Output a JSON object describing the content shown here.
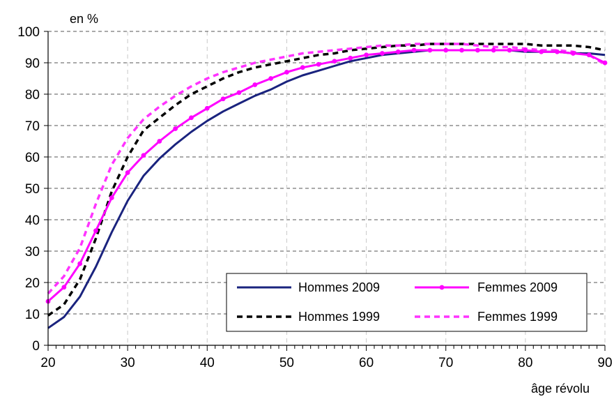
{
  "chart_data": {
    "type": "line",
    "ylabel": "en %",
    "xlabel": "âge révolu",
    "xlim": [
      20,
      90
    ],
    "ylim": [
      0,
      100
    ],
    "xticks": [
      20,
      30,
      40,
      50,
      60,
      70,
      80,
      90
    ],
    "yticks": [
      0,
      10,
      20,
      30,
      40,
      50,
      60,
      70,
      80,
      90,
      100
    ],
    "grid": {
      "horizontal": "dashed",
      "vertical": "dashed"
    },
    "legend_position": "bottom-right",
    "x": [
      20,
      22,
      24,
      26,
      28,
      30,
      32,
      34,
      36,
      38,
      40,
      42,
      44,
      46,
      48,
      50,
      52,
      54,
      56,
      58,
      60,
      62,
      64,
      66,
      68,
      70,
      72,
      74,
      76,
      78,
      80,
      82,
      84,
      86,
      88,
      90
    ],
    "series": [
      {
        "name": "Hommes 2009",
        "style": "solid",
        "color": "#1a237e",
        "markers": false,
        "values": [
          5.5,
          9,
          15.5,
          25,
          36,
          46,
          54,
          59.5,
          64,
          68,
          71.5,
          74.5,
          77,
          79.5,
          81.5,
          84,
          86,
          87.5,
          89,
          90.5,
          91.5,
          92.5,
          93,
          93.5,
          94,
          94,
          94,
          94,
          94,
          94,
          93.5,
          93.5,
          93.5,
          93,
          93,
          92.5
        ]
      },
      {
        "name": "Femmes 2009",
        "style": "solid",
        "color": "#ff00ff",
        "markers": true,
        "values": [
          14,
          18.5,
          26,
          36.5,
          47,
          55,
          60.5,
          65,
          69,
          72.5,
          75.5,
          78.5,
          80.5,
          83,
          85,
          87,
          88.5,
          89.5,
          90.5,
          91.5,
          92.5,
          93,
          93.5,
          94,
          94,
          94,
          94,
          94,
          94,
          94,
          94,
          93.5,
          93.5,
          93,
          92.5,
          90
        ]
      },
      {
        "name": "Hommes 1999",
        "style": "dashed",
        "color": "#000000",
        "markers": false,
        "values": [
          9.5,
          13,
          21,
          34,
          49,
          60,
          68.5,
          72.5,
          76.5,
          80,
          82.5,
          85,
          87,
          88.5,
          89.5,
          90.5,
          91.5,
          92.5,
          93,
          94,
          94.5,
          95,
          95.5,
          95.5,
          96,
          96,
          96,
          96,
          96,
          96,
          96,
          95.5,
          95.5,
          95.5,
          95,
          94
        ]
      },
      {
        "name": "Femmes 1999",
        "style": "dashed",
        "color": "#ff33ff",
        "markers": false,
        "values": [
          16.5,
          22,
          31,
          45,
          57.5,
          66,
          72,
          76,
          79.5,
          82.5,
          85,
          87,
          88.5,
          90,
          91,
          92,
          93,
          93.5,
          94,
          94.5,
          95,
          95.5,
          95.5,
          96,
          96,
          96,
          96,
          95.5,
          95,
          95,
          94.5,
          94,
          94,
          93.5,
          92.5,
          89.5
        ]
      }
    ]
  }
}
